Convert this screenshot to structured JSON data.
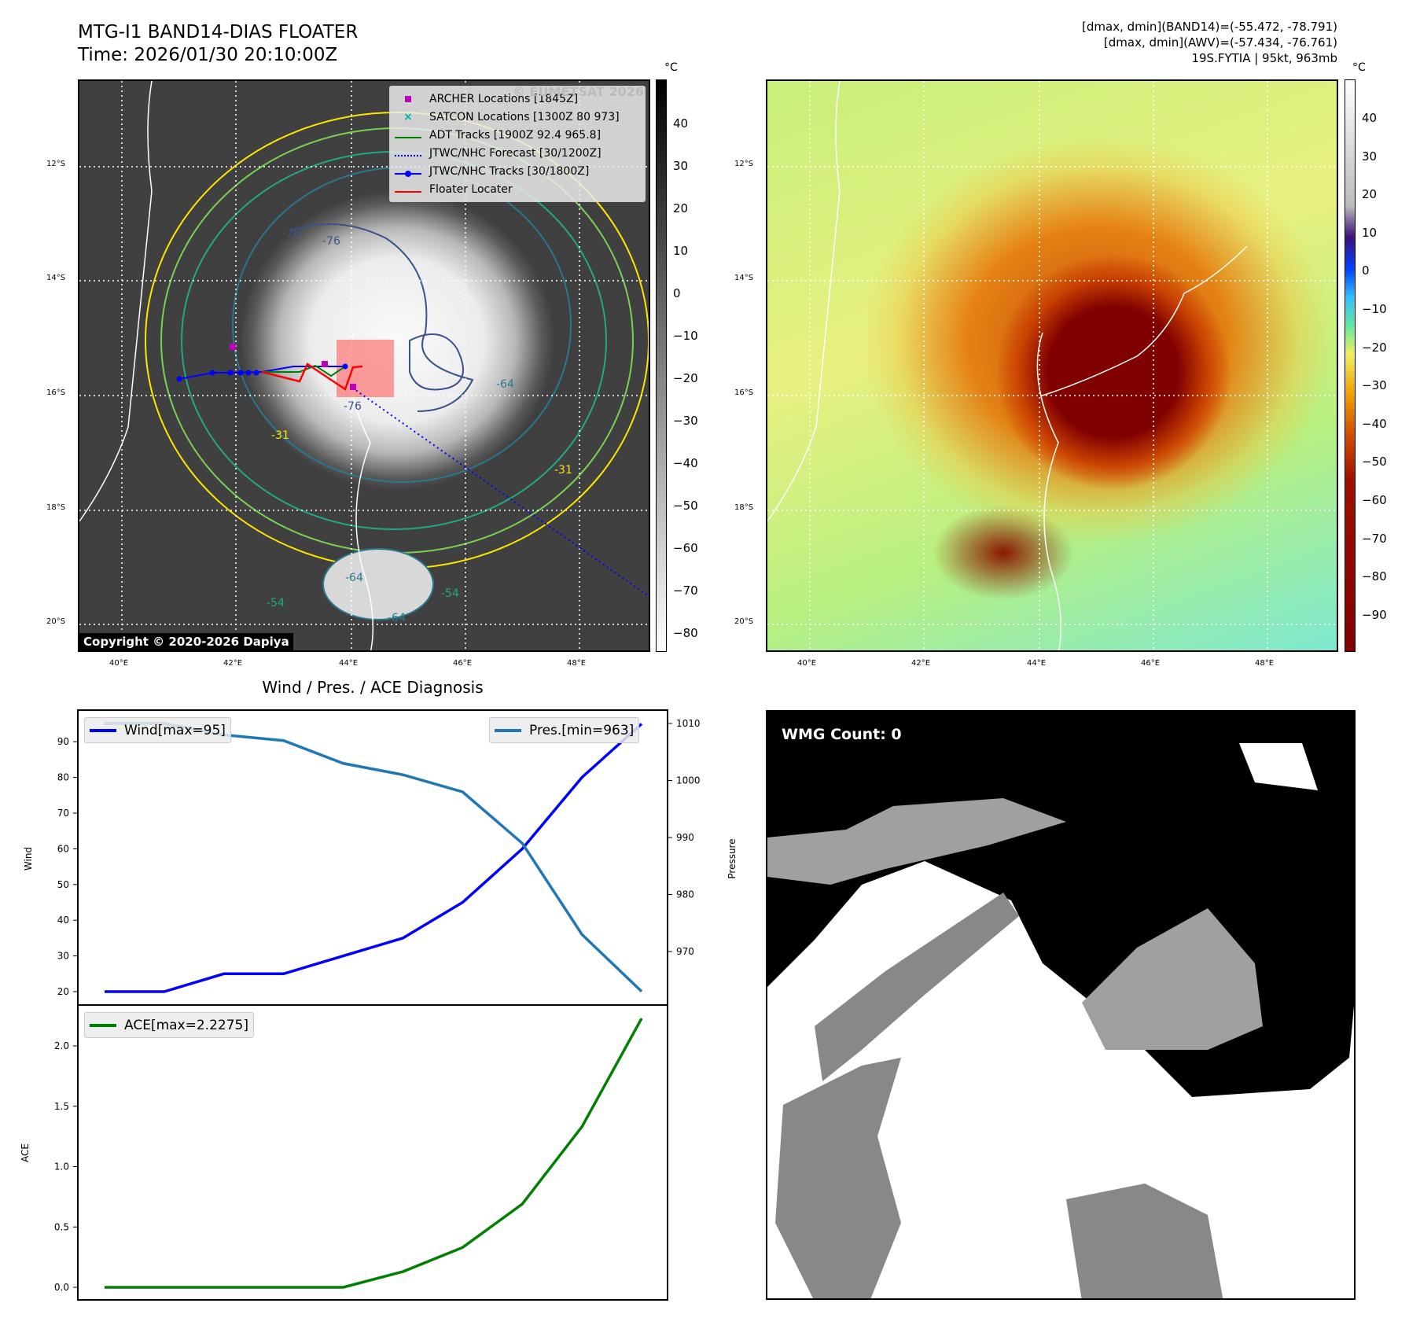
{
  "header": {
    "title": "MTG-I1 BAND14-DIAS FLOATER",
    "time": "Time: 2026/01/30 20:10:00Z",
    "stats_band14": "[dmax, dmin](BAND14)=(-55.472, -78.791)",
    "stats_awv": "[dmax, dmin](AWV)=(-57.434, -76.761)",
    "storm": "19S.FYTIA | 95kt, 963mb"
  },
  "map_left": {
    "watermark": "© EUMETSAT 2026",
    "copyright": "Copyright © 2020-2026 Dapiya",
    "legend": [
      {
        "label": "ARCHER Locations [1845Z]",
        "color": "#c000c0",
        "icon": "square-marker"
      },
      {
        "label": "SATCON Locations [1300Z 80 973]",
        "color": "#00b0b0",
        "icon": "x-marker"
      },
      {
        "label": "ADT Tracks [1900Z 92.4 965.8]",
        "color": "#008000",
        "icon": "solid-line"
      },
      {
        "label": "JTWC/NHC Forecast [30/1200Z]",
        "color": "#0000ff",
        "icon": "dotted-line"
      },
      {
        "label": "JTWC/NHC Tracks [30/1800Z]",
        "color": "#0000ff",
        "icon": "line-dot"
      },
      {
        "label": "Floater Locater",
        "color": "#ff0000",
        "icon": "solid-line"
      }
    ],
    "contour_labels": [
      "-76",
      "-76",
      "-76",
      "-64",
      "-64",
      "-31",
      "-31",
      "-54",
      "-54",
      "-64"
    ],
    "colorbar": {
      "unit": "°C",
      "ticks": [
        "40",
        "30",
        "20",
        "10",
        "0",
        "−10",
        "−20",
        "−30",
        "−40",
        "−50",
        "−60",
        "−70",
        "−80"
      ]
    }
  },
  "map_right": {
    "colorbar": {
      "unit": "°C",
      "ticks": [
        "40",
        "30",
        "20",
        "10",
        "0",
        "−10",
        "−20",
        "−30",
        "−40",
        "−50",
        "−60",
        "−70",
        "−80",
        "−90"
      ]
    }
  },
  "axes": {
    "lat": [
      "12°S",
      "14°S",
      "16°S",
      "18°S",
      "20°S"
    ],
    "lon": [
      "40°E",
      "42°E",
      "44°E",
      "46°E",
      "48°E"
    ]
  },
  "wmg": {
    "label": "WMG Count: 0"
  },
  "chart_data": {
    "type": "line",
    "title": "Wind / Pres. / ACE Diagnosis",
    "x": [
      0,
      1,
      2,
      3,
      4,
      5,
      6,
      7,
      8,
      9
    ],
    "series": [
      {
        "name": "Wind[max=95]",
        "axis": "Wind",
        "color": "#0000ff",
        "values": [
          20,
          20,
          25,
          25,
          30,
          35,
          45,
          60,
          80,
          95
        ]
      },
      {
        "name": "Pres.[min=963]",
        "axis": "Pressure",
        "color": "#1f77b4",
        "values": [
          1010,
          1010,
          1008,
          1007,
          1003,
          1001,
          998,
          989,
          973,
          963
        ]
      },
      {
        "name": "ACE[max=2.2275]",
        "axis": "ACE",
        "color": "#008000",
        "values": [
          0,
          0,
          0,
          0,
          0,
          0.13,
          0.33,
          0.69,
          1.33,
          2.2275
        ]
      }
    ],
    "wind_axis": {
      "label": "Wind",
      "ticks": [
        20,
        30,
        40,
        50,
        60,
        70,
        80,
        90
      ]
    },
    "pressure_axis": {
      "label": "Pressure",
      "ticks": [
        970,
        980,
        990,
        1000,
        1010
      ]
    },
    "ace_axis": {
      "label": "ACE",
      "ticks": [
        "0.0",
        "0.5",
        "1.0",
        "1.5",
        "2.0"
      ]
    }
  }
}
